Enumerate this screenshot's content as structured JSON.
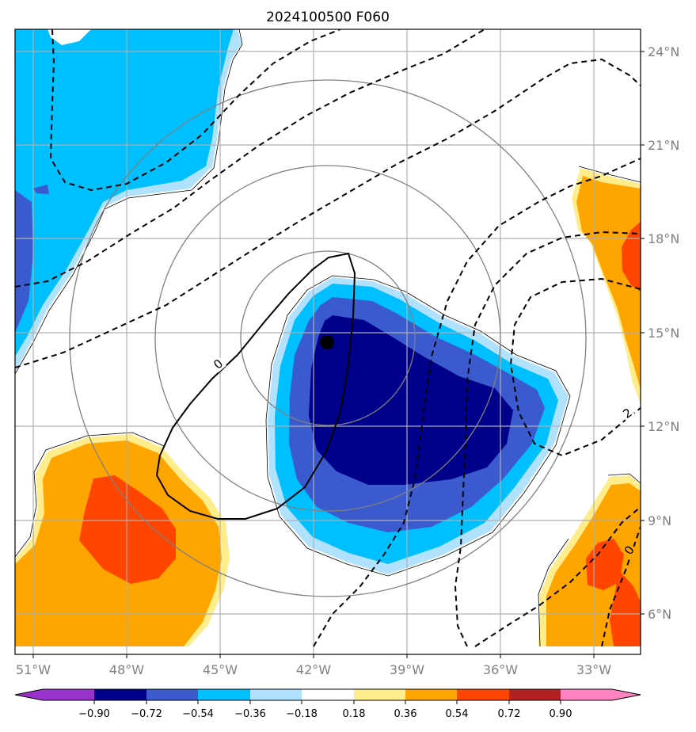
{
  "title": "2024100500 F060",
  "map": {
    "lon_range": [
      -51.5,
      -30.7
    ],
    "lat_range": [
      4.8,
      24.9
    ],
    "lon_ticks": [
      {
        "value": -51,
        "label": "51°W"
      },
      {
        "value": -48,
        "label": "48°W"
      },
      {
        "value": -45,
        "label": "45°W"
      },
      {
        "value": -42,
        "label": "42°W"
      },
      {
        "value": -39,
        "label": "39°W"
      },
      {
        "value": -36,
        "label": "36°W"
      },
      {
        "value": -33,
        "label": "33°W"
      }
    ],
    "lat_ticks": [
      {
        "value": 24,
        "label": "24°N"
      },
      {
        "value": 21,
        "label": "21°N"
      },
      {
        "value": 18,
        "label": "18°N"
      },
      {
        "value": 15,
        "label": "15°N"
      },
      {
        "value": 12,
        "label": "12°N"
      },
      {
        "value": 9,
        "label": "9°N"
      },
      {
        "value": 6,
        "label": "6°N"
      }
    ],
    "storm_center": {
      "lon": -41.8,
      "lat": 14.7
    },
    "range_rings_center": {
      "lon": -41.8,
      "lat": 14.8
    },
    "range_rings_deg": [
      2.8,
      5.5,
      8.3
    ],
    "contour_labels": [
      {
        "text": "0",
        "lon": -45.0,
        "lat": 14.0
      },
      {
        "text": "2",
        "lon": -31.9,
        "lat": 12.4
      },
      {
        "text": "0",
        "lon": -31.8,
        "lat": 8.0
      }
    ]
  },
  "colorbar": {
    "colors": [
      "#9932cc",
      "#00008b",
      "#3a5acd",
      "#00bfff",
      "#b0e2ff",
      "#ffffff",
      "#ffec8b",
      "#ffa500",
      "#ff4500",
      "#b22222",
      "#ff83c1"
    ],
    "tick_labels": [
      "−0.90",
      "−0.72",
      "−0.54",
      "−0.36",
      "−0.18",
      "0.18",
      "0.36",
      "0.54",
      "0.72",
      "0.90"
    ]
  }
}
